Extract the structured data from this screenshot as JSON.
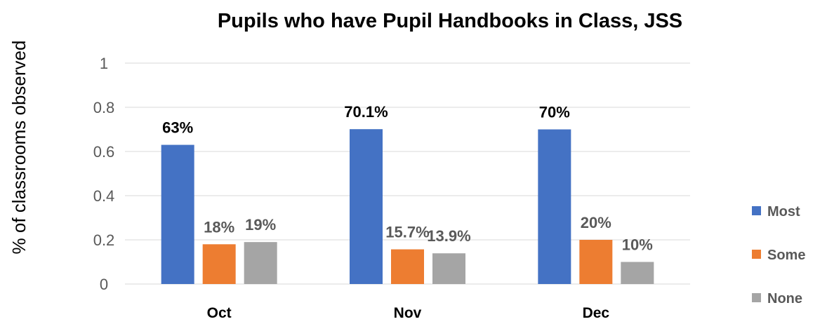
{
  "chart_data": {
    "type": "bar",
    "title": "Pupils who have Pupil Handbooks in Class, JSS",
    "xlabel": "",
    "ylabel": "% of classrooms observed",
    "ylim": [
      0,
      1
    ],
    "yticks": [
      0,
      0.2,
      0.4,
      0.6,
      0.8,
      1
    ],
    "ytick_labels": [
      "0",
      "0.2",
      "0.4",
      "0.6",
      "0.8",
      "1"
    ],
    "categories": [
      "Oct",
      "Nov",
      "Dec"
    ],
    "grid": true,
    "legend_position": "right",
    "series": [
      {
        "name": "Most",
        "color": "#4472c4",
        "label_color": "#000000",
        "values": [
          0.63,
          0.701,
          0.7
        ],
        "labels": [
          "63%",
          "70.1%",
          "70%"
        ]
      },
      {
        "name": "Some",
        "color": "#ed7d31",
        "label_color": "#595959",
        "values": [
          0.18,
          0.157,
          0.2
        ],
        "labels": [
          "18%",
          "15.7%",
          "20%"
        ]
      },
      {
        "name": "None",
        "color": "#a5a5a5",
        "label_color": "#595959",
        "values": [
          0.19,
          0.139,
          0.1
        ],
        "labels": [
          "19%",
          "13.9%",
          "10%"
        ]
      }
    ]
  }
}
